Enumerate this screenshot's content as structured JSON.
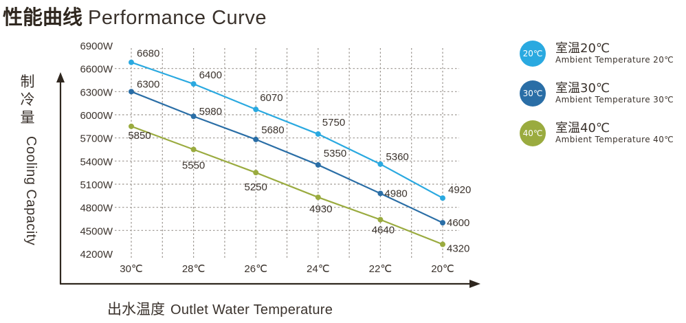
{
  "header": {
    "title_cn": "性能曲线",
    "title_en": "Performance Curve"
  },
  "chart_data": {
    "type": "line",
    "title": "性能曲线 Performance Curve",
    "xlabel_cn": "出水温度",
    "xlabel_en": "Outlet Water Temperature",
    "ylabel_cn": "制冷量",
    "ylabel_en": "Cooling Capacity",
    "categories": [
      "30℃",
      "28℃",
      "26℃",
      "24℃",
      "22℃",
      "20℃"
    ],
    "y_ticks": [
      "6900W",
      "6600W",
      "6300W",
      "6000W",
      "5700W",
      "5400W",
      "5100W",
      "4800W",
      "4500W",
      "4200W"
    ],
    "y_tick_values": [
      6900,
      6600,
      6300,
      6000,
      5700,
      5400,
      5100,
      4800,
      4500,
      4200
    ],
    "ylim": [
      4200,
      6900
    ],
    "grid": true,
    "legend_position": "right",
    "series": [
      {
        "name_cn": "室温20℃",
        "name_en": "Ambient Temperature 20℃",
        "badge": "20℃",
        "color": "#2aa9e0",
        "values": [
          6680,
          6400,
          6070,
          5750,
          5360,
          4920
        ],
        "labels": [
          "6680",
          "6400",
          "6070",
          "5750",
          "5360",
          "4920"
        ]
      },
      {
        "name_cn": "室温30℃",
        "name_en": "Ambient Temperature 30℃",
        "badge": "30℃",
        "color": "#2a6ea6",
        "values": [
          6300,
          5980,
          5680,
          5350,
          4980,
          4600
        ],
        "labels": [
          "6300",
          "5980",
          "5680",
          "5350",
          "4980",
          "4600"
        ]
      },
      {
        "name_cn": "室温40℃",
        "name_en": "Ambient Temperature 40℃",
        "badge": "40℃",
        "color": "#9aab3f",
        "values": [
          5850,
          5550,
          5250,
          4930,
          4640,
          4320
        ],
        "labels": [
          "5850",
          "5550",
          "5250",
          "4930",
          "4640",
          "4320"
        ]
      }
    ]
  },
  "colors": {
    "axis": "#2f271f",
    "grid": "#9a948e",
    "text": "#3a322c"
  }
}
